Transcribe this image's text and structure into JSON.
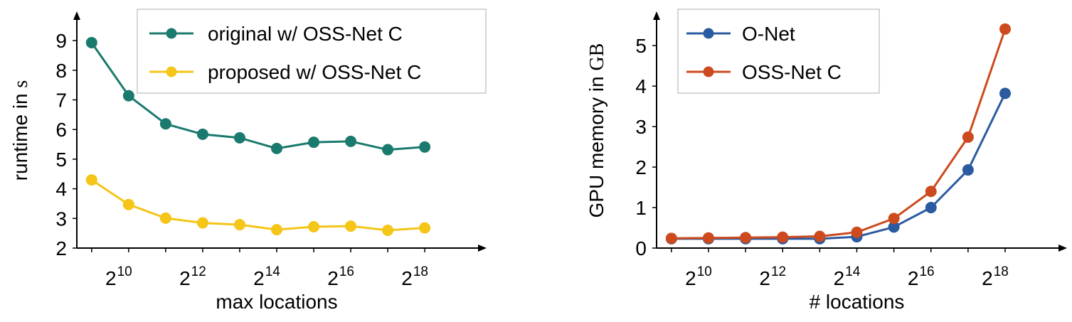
{
  "chart_data": [
    {
      "type": "line",
      "x": [
        9,
        10,
        11,
        12,
        13,
        14,
        15,
        16,
        17,
        18
      ],
      "xlabel": "max locations",
      "ylabel_text": "runtime in",
      "ylabel_unit": "s",
      "xtick_labels": [
        {
          "base": "2",
          "exp": "10"
        },
        {
          "base": "2",
          "exp": "12"
        },
        {
          "base": "2",
          "exp": "14"
        },
        {
          "base": "2",
          "exp": "16"
        },
        {
          "base": "2",
          "exp": "18"
        }
      ],
      "yticks": [
        "2",
        "3",
        "4",
        "5",
        "6",
        "7",
        "8",
        "9"
      ],
      "xlim": [
        8.6,
        19.4
      ],
      "ylim": [
        2,
        9.65
      ],
      "grid": false,
      "legend_position": "top-right",
      "series": [
        {
          "name": "original w/ OSS-Net C",
          "color": "#1a7a6e",
          "values": [
            8.93,
            7.14,
            6.19,
            5.84,
            5.72,
            5.36,
            5.57,
            5.6,
            5.32,
            5.41
          ]
        },
        {
          "name": "proposed w/ OSS-Net C",
          "color": "#f5c518",
          "values": [
            4.3,
            3.47,
            3.01,
            2.85,
            2.79,
            2.62,
            2.72,
            2.74,
            2.6,
            2.68
          ]
        }
      ]
    },
    {
      "type": "line",
      "x": [
        9,
        10,
        11,
        12,
        13,
        14,
        15,
        16,
        17,
        18
      ],
      "xlabel": "# locations",
      "ylabel_text": "GPU memory in",
      "ylabel_unit": "GB",
      "xtick_labels": [
        {
          "base": "2",
          "exp": "10"
        },
        {
          "base": "2",
          "exp": "12"
        },
        {
          "base": "2",
          "exp": "14"
        },
        {
          "base": "2",
          "exp": "16"
        },
        {
          "base": "2",
          "exp": "18"
        }
      ],
      "yticks": [
        "0",
        "1",
        "2",
        "3",
        "4",
        "5"
      ],
      "xlim": [
        8.6,
        19.4
      ],
      "ylim": [
        0,
        5.6
      ],
      "grid": false,
      "legend_position": "top-left",
      "series": [
        {
          "name": "O-Net",
          "color": "#2a5aa0",
          "values": [
            0.23,
            0.23,
            0.23,
            0.23,
            0.23,
            0.28,
            0.52,
            1.0,
            1.93,
            3.82
          ]
        },
        {
          "name": "OSS-Net C",
          "color": "#cc4a1e",
          "values": [
            0.24,
            0.25,
            0.26,
            0.27,
            0.29,
            0.39,
            0.73,
            1.4,
            2.74,
            5.41
          ]
        }
      ]
    }
  ]
}
